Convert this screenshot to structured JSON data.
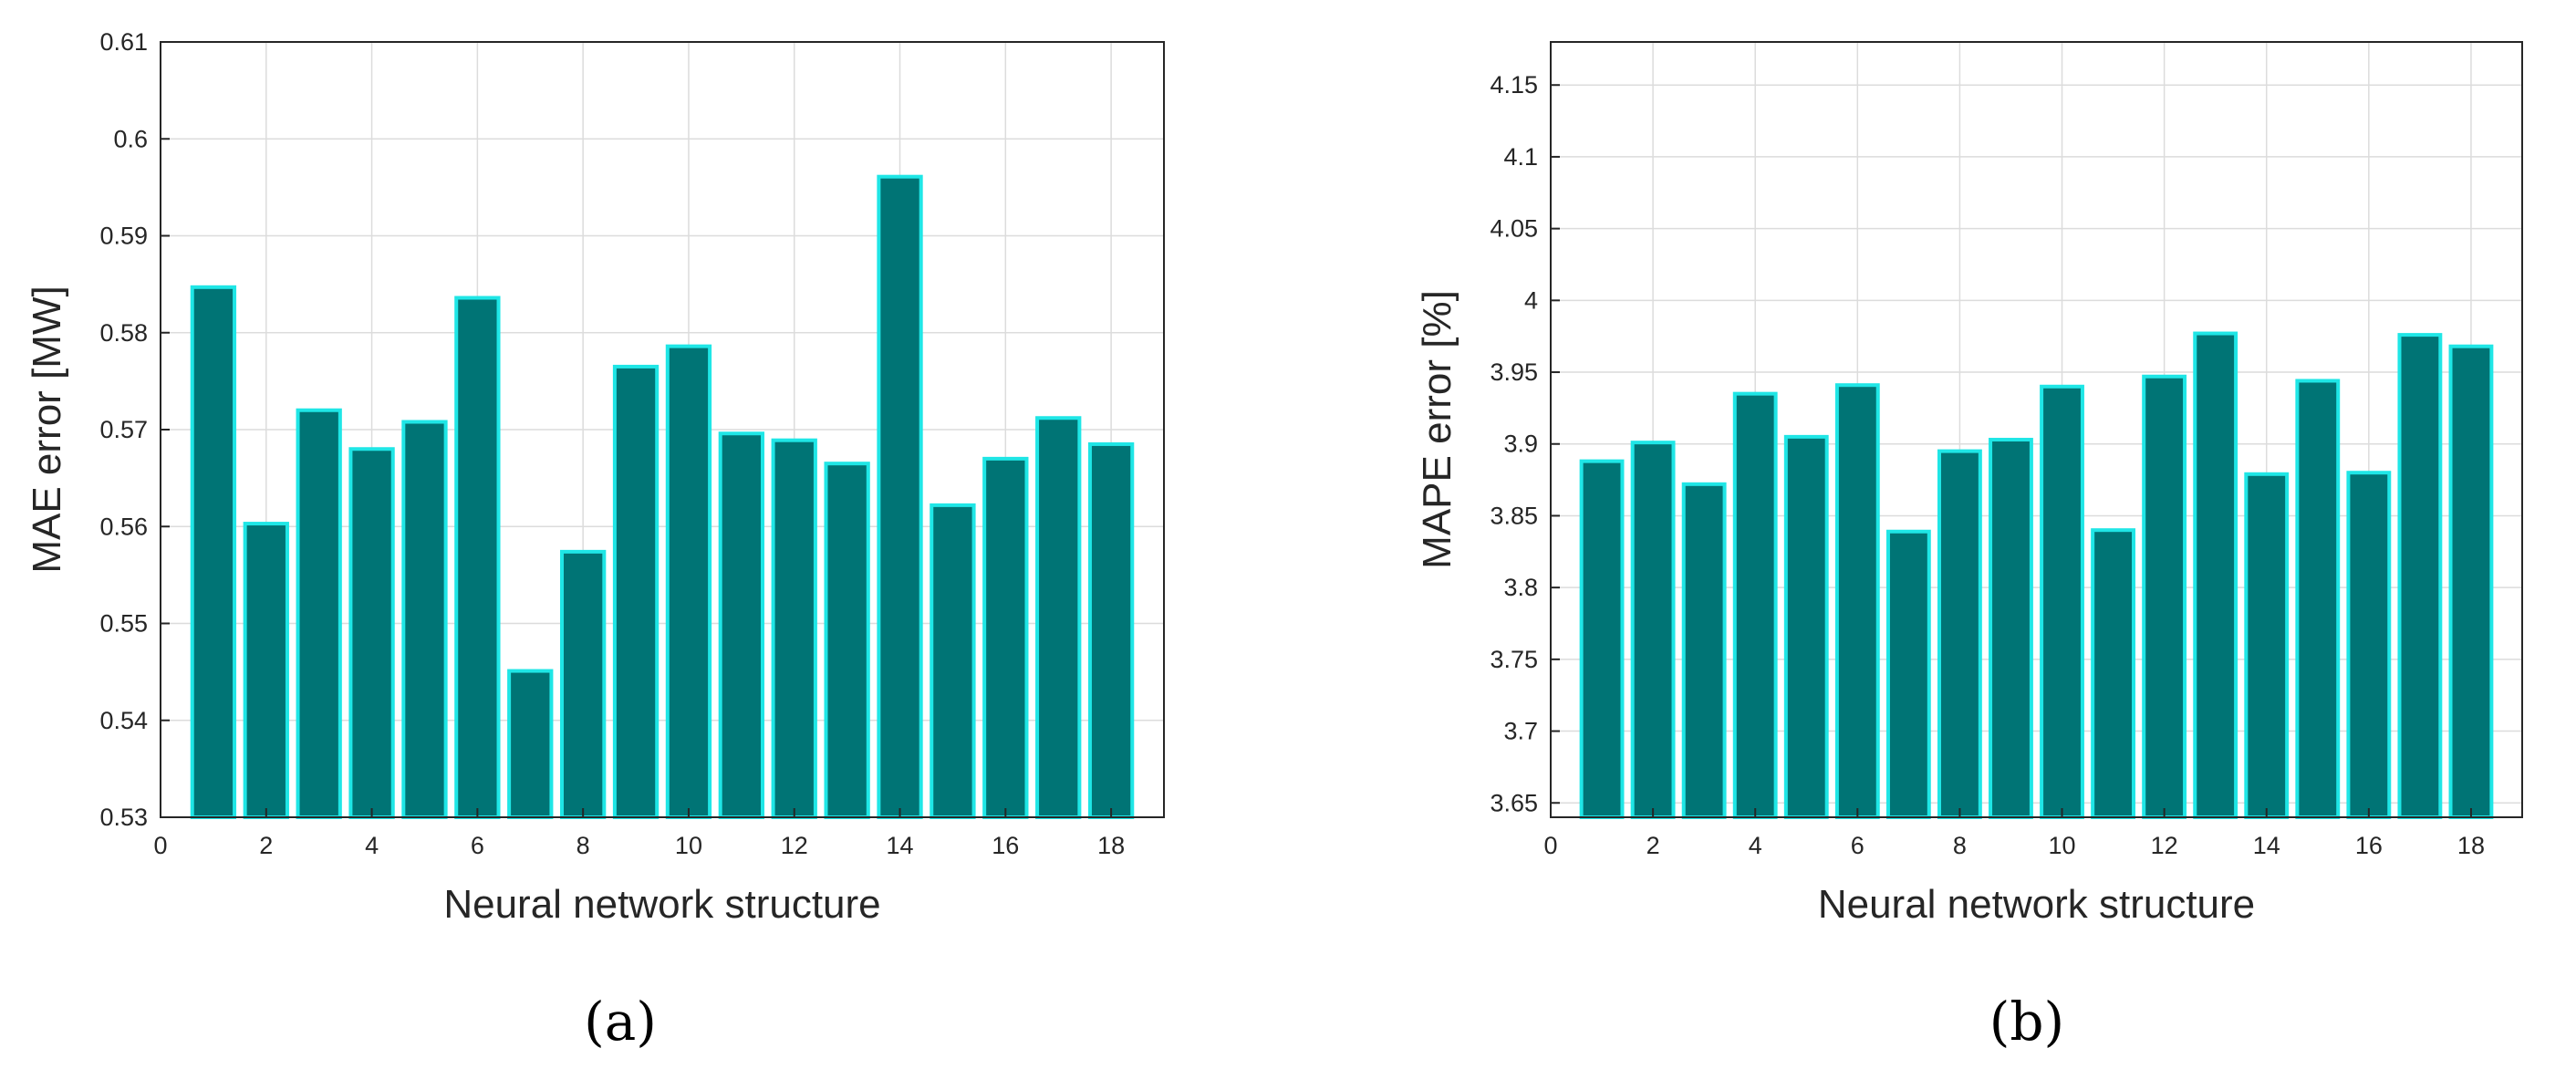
{
  "colors": {
    "bar_fill": "#007475",
    "bar_edge": "#1FE6E6",
    "grid": "#dcdcdc",
    "axis": "#262626",
    "background": "#ffffff"
  },
  "chart_data": [
    {
      "type": "bar",
      "panel_label": "(a)",
      "xlabel": "Neural network structure",
      "ylabel": "MAE error [MW]",
      "grid": true,
      "xlim": [
        0,
        19
      ],
      "ylim": [
        0.53,
        0.61
      ],
      "x_ticks": [
        0,
        2,
        4,
        6,
        8,
        10,
        12,
        14,
        16,
        18
      ],
      "x_tick_labels": [
        "0",
        "2",
        "4",
        "6",
        "8",
        "10",
        "12",
        "14",
        "16",
        "18"
      ],
      "y_ticks": [
        0.53,
        0.54,
        0.55,
        0.56,
        0.57,
        0.58,
        0.59,
        0.6,
        0.61
      ],
      "y_tick_labels": [
        "0.53",
        "0.54",
        "0.55",
        "0.56",
        "0.57",
        "0.58",
        "0.59",
        "0.6",
        "0.61"
      ],
      "x": [
        1,
        2,
        3,
        4,
        5,
        6,
        7,
        8,
        9,
        10,
        11,
        12,
        13,
        14,
        15,
        16,
        17,
        18
      ],
      "values": [
        0.5847,
        0.5603,
        0.572,
        0.568,
        0.5708,
        0.5836,
        0.5451,
        0.5574,
        0.5765,
        0.5786,
        0.5696,
        0.5689,
        0.5665,
        0.5961,
        0.5622,
        0.567,
        0.5712,
        0.5685
      ]
    },
    {
      "type": "bar",
      "panel_label": "(b)",
      "xlabel": "Neural network structure",
      "ylabel": "MAPE error [%]",
      "grid": true,
      "xlim": [
        0,
        19
      ],
      "ylim": [
        3.64,
        4.18
      ],
      "x_ticks": [
        0,
        2,
        4,
        6,
        8,
        10,
        12,
        14,
        16,
        18
      ],
      "x_tick_labels": [
        "0",
        "2",
        "4",
        "6",
        "8",
        "10",
        "12",
        "14",
        "16",
        "18"
      ],
      "y_ticks": [
        3.65,
        3.7,
        3.75,
        3.8,
        3.85,
        3.9,
        3.95,
        4,
        4.05,
        4.1,
        4.15
      ],
      "y_tick_labels": [
        "3.65",
        "3.7",
        "3.75",
        "3.8",
        "3.85",
        "3.9",
        "3.95",
        "4",
        "4.05",
        "4.1",
        "4.15"
      ],
      "x": [
        1,
        2,
        3,
        4,
        5,
        6,
        7,
        8,
        9,
        10,
        11,
        12,
        13,
        14,
        15,
        16,
        17,
        18
      ],
      "values": [
        3.888,
        3.901,
        3.872,
        3.935,
        3.905,
        3.941,
        3.839,
        3.895,
        3.903,
        3.94,
        3.84,
        3.947,
        3.977,
        3.879,
        3.944,
        3.88,
        3.976,
        3.968
      ]
    }
  ]
}
